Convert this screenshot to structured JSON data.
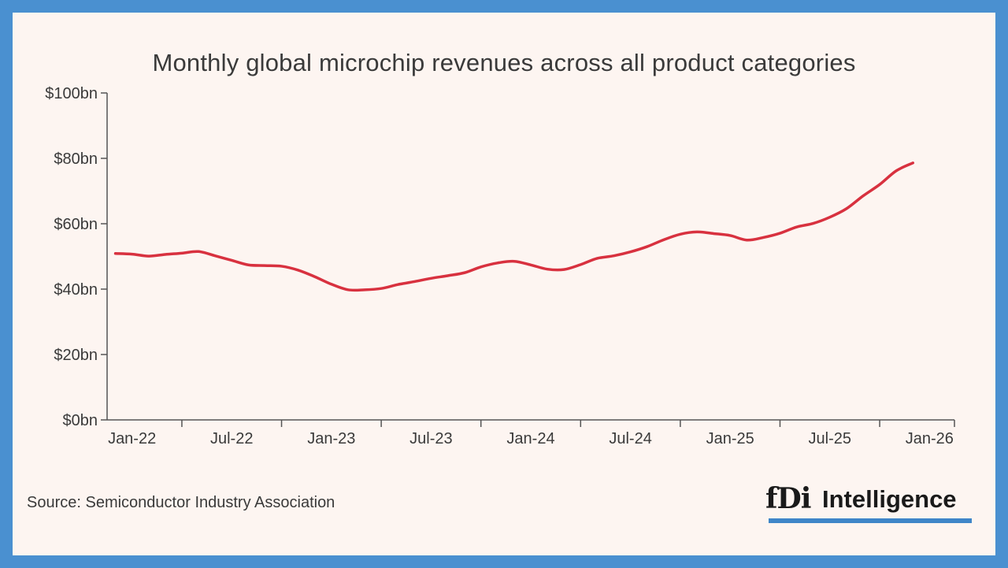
{
  "chart_data": {
    "type": "line",
    "title": "Monthly global microchip revenues across all product categories",
    "xlabel": "",
    "ylabel": "",
    "y_tick_labels": [
      "$0bn",
      "$20bn",
      "$40bn",
      "$60bn",
      "$80bn",
      "$100bn"
    ],
    "y_ticks": [
      0,
      20,
      40,
      60,
      80,
      100
    ],
    "ylim": [
      0,
      100
    ],
    "x_tick_labels": [
      "Jan-22",
      "Jul-22",
      "Jan-23",
      "Jul-23",
      "Jan-24",
      "Jul-24",
      "Jan-25",
      "Jul-25",
      "Jan-26"
    ],
    "x_tick_months": [
      0,
      6,
      12,
      18,
      24,
      30,
      36,
      42,
      48
    ],
    "x_range_months": [
      -1.5,
      49.5
    ],
    "grid": false,
    "line_color": "#d8313f",
    "series": [
      {
        "name": "Monthly global microchip revenues",
        "months": [
          -1,
          0,
          1,
          2,
          3,
          4,
          5,
          6,
          7,
          8,
          9,
          10,
          11,
          12,
          13,
          14,
          15,
          16,
          17,
          18,
          19,
          20,
          21,
          22,
          23,
          24,
          25,
          26,
          27,
          28,
          29,
          30,
          31,
          32,
          33,
          34,
          35,
          36,
          37,
          38,
          39,
          40,
          41,
          42,
          43,
          44,
          45,
          46,
          47
        ],
        "values": [
          50.9,
          50.7,
          50.1,
          50.6,
          51.0,
          51.5,
          50.2,
          48.8,
          47.4,
          47.2,
          47.0,
          45.8,
          43.8,
          41.5,
          39.8,
          39.8,
          40.2,
          41.4,
          42.3,
          43.3,
          44.1,
          45.0,
          46.8,
          48.0,
          48.5,
          47.4,
          46.1,
          46.0,
          47.5,
          49.4,
          50.2,
          51.4,
          53.0,
          55.1,
          56.8,
          57.5,
          57.0,
          56.4,
          55.0,
          55.8,
          57.1,
          59.0,
          60.1,
          62.0,
          64.6,
          68.5,
          72.0,
          76.2,
          78.6
        ]
      }
    ]
  },
  "source": "Source: Semiconductor Industry Association",
  "logo": {
    "mark": "fDi",
    "name": "Intelligence",
    "bar_color": "#3f86c8"
  }
}
